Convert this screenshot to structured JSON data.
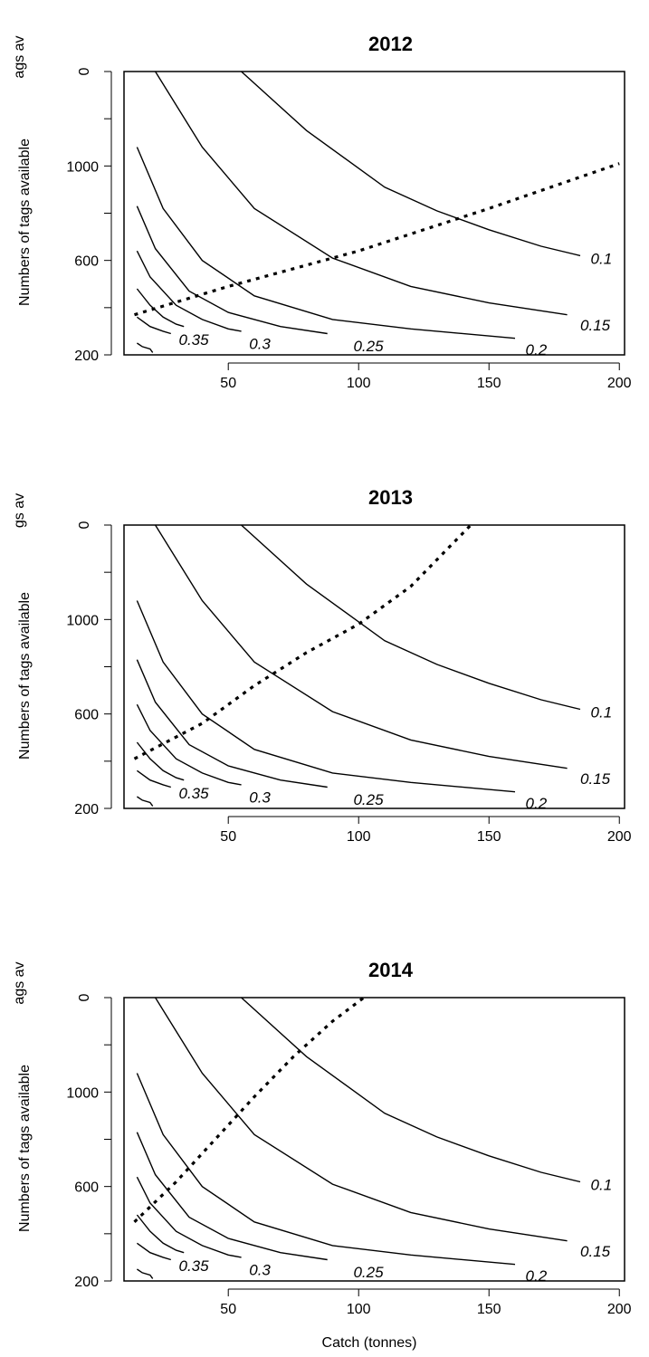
{
  "chart_data": [
    {
      "type": "line",
      "title": "2012",
      "ylabel": "Numbers of tags available",
      "ylabel_top_fragment": "ags av",
      "xlabel": "",
      "x_ticks": [
        "50",
        "100",
        "150",
        "200"
      ],
      "y_ticks": [
        "200",
        "600",
        "1000",
        "0"
      ],
      "xlim": [
        10,
        202
      ],
      "ylim": [
        200,
        1400
      ],
      "grid": false,
      "legend": "none",
      "contours": [
        {
          "name": "0.1",
          "points": [
            [
              55,
              1400
            ],
            [
              80,
              1150
            ],
            [
              110,
              910
            ],
            [
              130,
              810
            ],
            [
              150,
              730
            ],
            [
              170,
              660
            ],
            [
              185,
              620
            ]
          ]
        },
        {
          "name": "0.15",
          "points": [
            [
              22,
              1400
            ],
            [
              40,
              1080
            ],
            [
              60,
              820
            ],
            [
              90,
              610
            ],
            [
              120,
              490
            ],
            [
              150,
              420
            ],
            [
              180,
              370
            ]
          ]
        },
        {
          "name": "0.2",
          "points": [
            [
              15,
              1080
            ],
            [
              25,
              820
            ],
            [
              40,
              600
            ],
            [
              60,
              450
            ],
            [
              90,
              350
            ],
            [
              120,
              310
            ],
            [
              160,
              270
            ]
          ]
        },
        {
          "name": "0.25",
          "points": [
            [
              15,
              830
            ],
            [
              22,
              650
            ],
            [
              35,
              470
            ],
            [
              50,
              380
            ],
            [
              70,
              320
            ],
            [
              88,
              290
            ]
          ]
        },
        {
          "name": "0.3",
          "points": [
            [
              15,
              640
            ],
            [
              20,
              530
            ],
            [
              30,
              410
            ],
            [
              40,
              350
            ],
            [
              50,
              310
            ],
            [
              55,
              300
            ]
          ]
        },
        {
          "name": "0.35",
          "points": [
            [
              15,
              480
            ],
            [
              20,
              410
            ],
            [
              25,
              360
            ],
            [
              30,
              330
            ],
            [
              33,
              320
            ]
          ]
        },
        {
          "name": "",
          "points": [
            [
              15,
              360
            ],
            [
              20,
              320
            ],
            [
              25,
              300
            ],
            [
              28,
              290
            ]
          ]
        },
        {
          "name": "",
          "points": [
            [
              15,
              250
            ],
            [
              17,
              235
            ],
            [
              20,
              225
            ],
            [
              21,
              210
            ]
          ]
        }
      ],
      "contour_labels": [
        {
          "text": "0.1",
          "x": 189,
          "y": 585
        },
        {
          "text": "0.15",
          "x": 185,
          "y": 303
        },
        {
          "text": "0.2",
          "x": 164,
          "y": 200
        },
        {
          "text": "0.25",
          "x": 98,
          "y": 215
        },
        {
          "text": "0.3",
          "x": 58,
          "y": 225
        },
        {
          "text": "0.35",
          "x": 31,
          "y": 243
        }
      ],
      "dashed_line": {
        "x": [
          14,
          50,
          100,
          150,
          200
        ],
        "y": [
          370,
          490,
          640,
          820,
          1010
        ]
      }
    },
    {
      "type": "line",
      "title": "2013",
      "ylabel": "Numbers of tags available",
      "ylabel_top_fragment": "gs av",
      "xlabel": "",
      "x_ticks": [
        "50",
        "100",
        "150",
        "200"
      ],
      "y_ticks": [
        "200",
        "600",
        "1000",
        "0"
      ],
      "xlim": [
        10,
        202
      ],
      "ylim": [
        200,
        1400
      ],
      "grid": false,
      "legend": "none",
      "contours": [
        {
          "name": "0.1",
          "points": [
            [
              55,
              1400
            ],
            [
              80,
              1150
            ],
            [
              110,
              910
            ],
            [
              130,
              810
            ],
            [
              150,
              730
            ],
            [
              170,
              660
            ],
            [
              185,
              620
            ]
          ]
        },
        {
          "name": "0.15",
          "points": [
            [
              22,
              1400
            ],
            [
              40,
              1080
            ],
            [
              60,
              820
            ],
            [
              90,
              610
            ],
            [
              120,
              490
            ],
            [
              150,
              420
            ],
            [
              180,
              370
            ]
          ]
        },
        {
          "name": "0.2",
          "points": [
            [
              15,
              1080
            ],
            [
              25,
              820
            ],
            [
              40,
              600
            ],
            [
              60,
              450
            ],
            [
              90,
              350
            ],
            [
              120,
              310
            ],
            [
              160,
              270
            ]
          ]
        },
        {
          "name": "0.25",
          "points": [
            [
              15,
              830
            ],
            [
              22,
              650
            ],
            [
              35,
              470
            ],
            [
              50,
              380
            ],
            [
              70,
              320
            ],
            [
              88,
              290
            ]
          ]
        },
        {
          "name": "0.3",
          "points": [
            [
              15,
              640
            ],
            [
              20,
              530
            ],
            [
              30,
              410
            ],
            [
              40,
              350
            ],
            [
              50,
              310
            ],
            [
              55,
              300
            ]
          ]
        },
        {
          "name": "0.35",
          "points": [
            [
              15,
              480
            ],
            [
              20,
              410
            ],
            [
              25,
              360
            ],
            [
              30,
              330
            ],
            [
              33,
              320
            ]
          ]
        },
        {
          "name": "",
          "points": [
            [
              15,
              360
            ],
            [
              20,
              320
            ],
            [
              25,
              300
            ],
            [
              28,
              290
            ]
          ]
        },
        {
          "name": "",
          "points": [
            [
              15,
              250
            ],
            [
              17,
              235
            ],
            [
              20,
              225
            ],
            [
              21,
              210
            ]
          ]
        }
      ],
      "contour_labels": [
        {
          "text": "0.1",
          "x": 189,
          "y": 585
        },
        {
          "text": "0.15",
          "x": 185,
          "y": 303
        },
        {
          "text": "0.2",
          "x": 164,
          "y": 200
        },
        {
          "text": "0.25",
          "x": 98,
          "y": 215
        },
        {
          "text": "0.3",
          "x": 58,
          "y": 225
        },
        {
          "text": "0.35",
          "x": 31,
          "y": 243
        }
      ],
      "dashed_line": {
        "x": [
          14,
          40,
          60,
          80,
          100,
          120,
          143
        ],
        "y": [
          410,
          560,
          720,
          860,
          980,
          1140,
          1400
        ]
      }
    },
    {
      "type": "line",
      "title": "2014",
      "ylabel": "Numbers of tags available",
      "ylabel_top_fragment": "ags av",
      "xlabel": "Catch (tonnes)",
      "x_ticks": [
        "50",
        "100",
        "150",
        "200"
      ],
      "y_ticks": [
        "200",
        "600",
        "1000",
        "0"
      ],
      "xlim": [
        10,
        202
      ],
      "ylim": [
        200,
        1400
      ],
      "grid": false,
      "legend": "none",
      "contours": [
        {
          "name": "0.1",
          "points": [
            [
              55,
              1400
            ],
            [
              80,
              1150
            ],
            [
              110,
              910
            ],
            [
              130,
              810
            ],
            [
              150,
              730
            ],
            [
              170,
              660
            ],
            [
              185,
              620
            ]
          ]
        },
        {
          "name": "0.15",
          "points": [
            [
              22,
              1400
            ],
            [
              40,
              1080
            ],
            [
              60,
              820
            ],
            [
              90,
              610
            ],
            [
              120,
              490
            ],
            [
              150,
              420
            ],
            [
              180,
              370
            ]
          ]
        },
        {
          "name": "0.2",
          "points": [
            [
              15,
              1080
            ],
            [
              25,
              820
            ],
            [
              40,
              600
            ],
            [
              60,
              450
            ],
            [
              90,
              350
            ],
            [
              120,
              310
            ],
            [
              160,
              270
            ]
          ]
        },
        {
          "name": "0.25",
          "points": [
            [
              15,
              830
            ],
            [
              22,
              650
            ],
            [
              35,
              470
            ],
            [
              50,
              380
            ],
            [
              70,
              320
            ],
            [
              88,
              290
            ]
          ]
        },
        {
          "name": "0.3",
          "points": [
            [
              15,
              640
            ],
            [
              20,
              530
            ],
            [
              30,
              410
            ],
            [
              40,
              350
            ],
            [
              50,
              310
            ],
            [
              55,
              300
            ]
          ]
        },
        {
          "name": "0.35",
          "points": [
            [
              15,
              480
            ],
            [
              20,
              410
            ],
            [
              25,
              360
            ],
            [
              30,
              330
            ],
            [
              33,
              320
            ]
          ]
        },
        {
          "name": "",
          "points": [
            [
              15,
              360
            ],
            [
              20,
              320
            ],
            [
              25,
              300
            ],
            [
              28,
              290
            ]
          ]
        },
        {
          "name": "",
          "points": [
            [
              15,
              250
            ],
            [
              17,
              235
            ],
            [
              20,
              225
            ],
            [
              21,
              210
            ]
          ]
        }
      ],
      "contour_labels": [
        {
          "text": "0.1",
          "x": 189,
          "y": 585
        },
        {
          "text": "0.15",
          "x": 185,
          "y": 303
        },
        {
          "text": "0.2",
          "x": 164,
          "y": 200
        },
        {
          "text": "0.25",
          "x": 98,
          "y": 215
        },
        {
          "text": "0.3",
          "x": 58,
          "y": 225
        },
        {
          "text": "0.35",
          "x": 31,
          "y": 243
        }
      ],
      "dashed_line": {
        "x": [
          14,
          30,
          45,
          60,
          75,
          90,
          102
        ],
        "y": [
          450,
          620,
          800,
          980,
          1150,
          1300,
          1400
        ]
      }
    }
  ]
}
